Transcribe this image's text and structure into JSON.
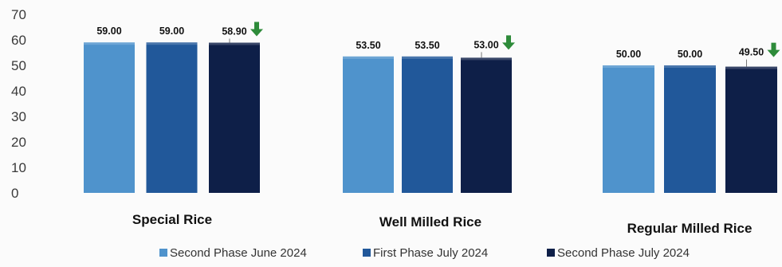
{
  "chart_data": {
    "type": "bar",
    "categories": [
      "Special Rice",
      "Well Milled Rice",
      "Regular Milled Rice"
    ],
    "series": [
      {
        "name": "Second Phase June 2024",
        "values": [
          59.0,
          53.5,
          50.0
        ],
        "labels": [
          "59.00",
          "53.50",
          "50.00"
        ],
        "color": "#4f93cc"
      },
      {
        "name": "First Phase July 2024",
        "values": [
          59.0,
          53.5,
          50.0
        ],
        "labels": [
          "59.00",
          "53.50",
          "50.00"
        ],
        "color": "#21589a"
      },
      {
        "name": "Second Phase July 2024",
        "values": [
          58.9,
          53.0,
          49.5
        ],
        "labels": [
          "58.90",
          "53.00",
          "49.50"
        ],
        "color": "#0e1f48"
      }
    ],
    "decrease_markers": [
      {
        "category": "Special Rice",
        "series": "Second Phase July 2024",
        "direction": "down",
        "color": "#2e8b3a"
      },
      {
        "category": "Well Milled Rice",
        "series": "Second Phase July 2024",
        "direction": "down",
        "color": "#2e8b3a"
      },
      {
        "category": "Regular Milled Rice",
        "series": "Second Phase July 2024",
        "direction": "down",
        "color": "#2e8b3a"
      }
    ],
    "yticks": [
      "70",
      "60",
      "50",
      "40",
      "30",
      "20",
      "10",
      "0"
    ],
    "ylim": [
      0,
      70
    ],
    "grid": false,
    "legend": "bottom",
    "title": "",
    "xlabel": "",
    "ylabel": ""
  }
}
